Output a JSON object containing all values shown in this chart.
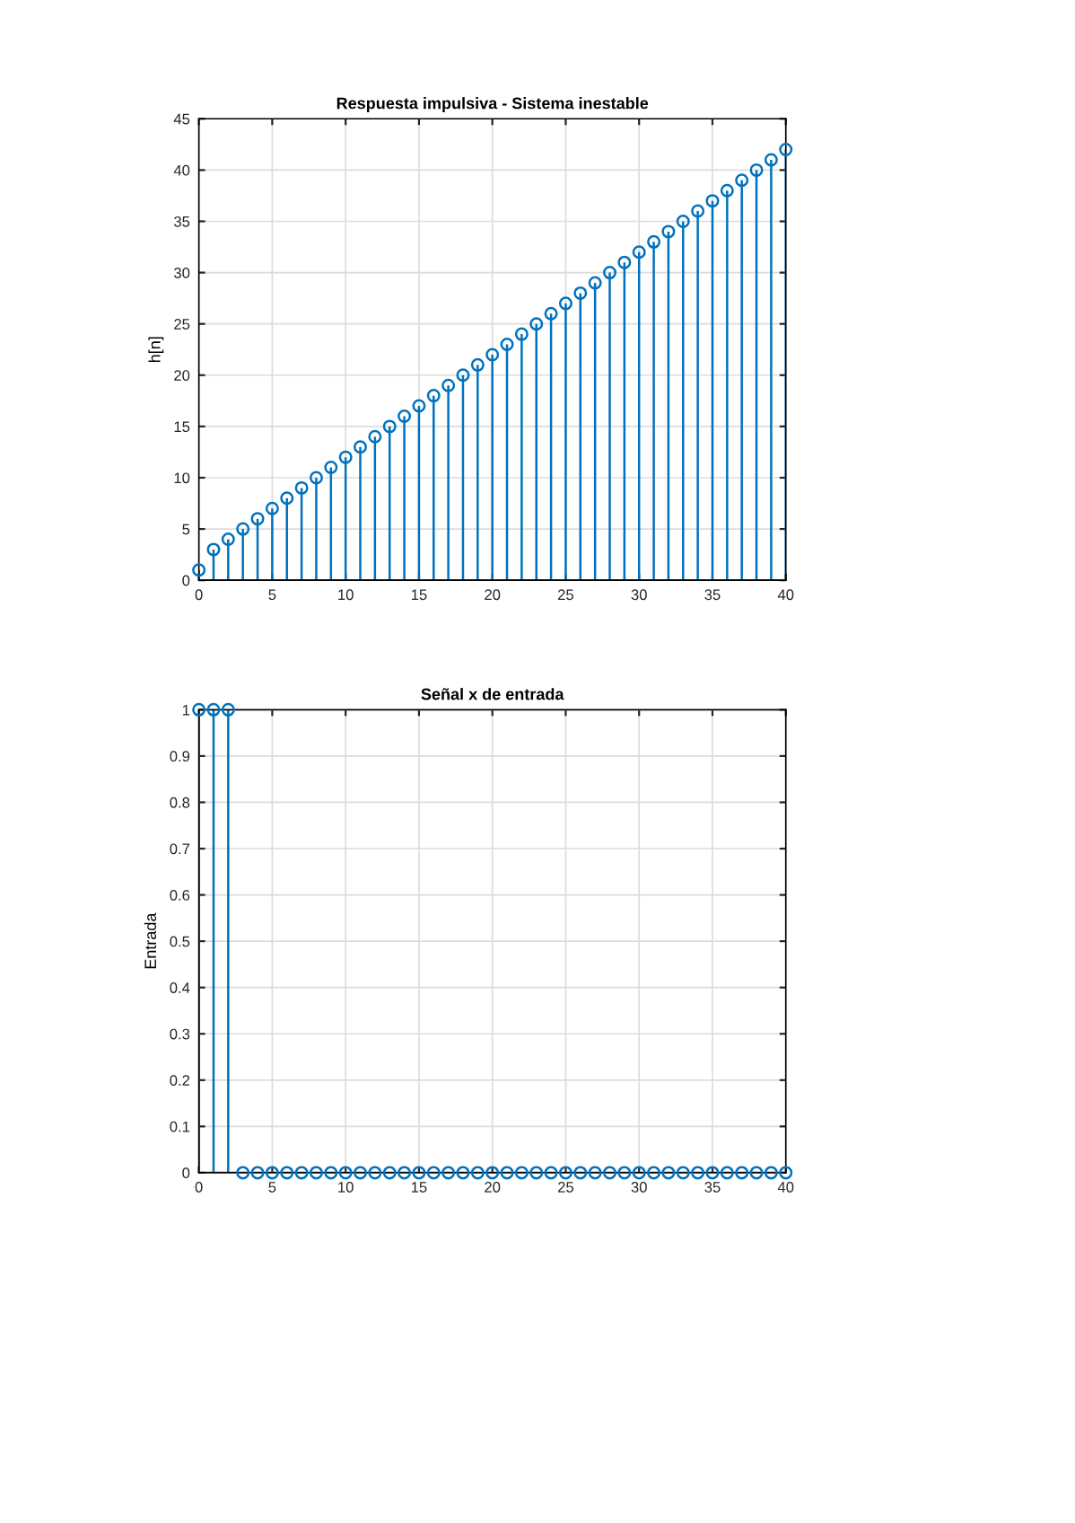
{
  "chart_data": [
    {
      "type": "lollipop",
      "title": "Respuesta impulsiva - Sistema inestable",
      "ylabel": "h[n]",
      "x": [
        0,
        1,
        2,
        3,
        4,
        5,
        6,
        7,
        8,
        9,
        10,
        11,
        12,
        13,
        14,
        15,
        16,
        17,
        18,
        19,
        20,
        21,
        22,
        23,
        24,
        25,
        26,
        27,
        28,
        29,
        30,
        31,
        32,
        33,
        34,
        35,
        36,
        37,
        38,
        39,
        40
      ],
      "values": [
        1,
        3,
        4,
        5,
        6,
        7,
        8,
        9,
        10,
        11,
        12,
        13,
        14,
        15,
        16,
        17,
        18,
        19,
        20,
        21,
        22,
        23,
        24,
        25,
        26,
        27,
        28,
        29,
        30,
        31,
        32,
        33,
        34,
        35,
        36,
        37,
        38,
        39,
        40,
        41,
        42
      ],
      "color": "#0072bd",
      "marker": "circle",
      "grid": true,
      "xlim": [
        0,
        40
      ],
      "xticks": [
        0,
        5,
        10,
        15,
        20,
        25,
        30,
        35,
        40
      ],
      "ylim": [
        0,
        45
      ],
      "yticks": [
        0,
        5,
        10,
        15,
        20,
        25,
        30,
        35,
        40,
        45
      ]
    },
    {
      "type": "lollipop",
      "title": "Señal x de entrada",
      "ylabel": "Entrada",
      "x": [
        0,
        1,
        2,
        3,
        4,
        5,
        6,
        7,
        8,
        9,
        10,
        11,
        12,
        13,
        14,
        15,
        16,
        17,
        18,
        19,
        20,
        21,
        22,
        23,
        24,
        25,
        26,
        27,
        28,
        29,
        30,
        31,
        32,
        33,
        34,
        35,
        36,
        37,
        38,
        39,
        40
      ],
      "values": [
        1,
        1,
        1,
        0,
        0,
        0,
        0,
        0,
        0,
        0,
        0,
        0,
        0,
        0,
        0,
        0,
        0,
        0,
        0,
        0,
        0,
        0,
        0,
        0,
        0,
        0,
        0,
        0,
        0,
        0,
        0,
        0,
        0,
        0,
        0,
        0,
        0,
        0,
        0,
        0,
        0
      ],
      "color": "#0072bd",
      "marker": "circle",
      "grid": true,
      "xlim": [
        0,
        40
      ],
      "xticks": [
        0,
        5,
        10,
        15,
        20,
        25,
        30,
        35,
        40
      ],
      "ylim": [
        0,
        1
      ],
      "yticks": [
        0,
        0.1,
        0.2,
        0.3,
        0.4,
        0.5,
        0.6,
        0.7,
        0.8,
        0.9,
        1
      ]
    }
  ]
}
